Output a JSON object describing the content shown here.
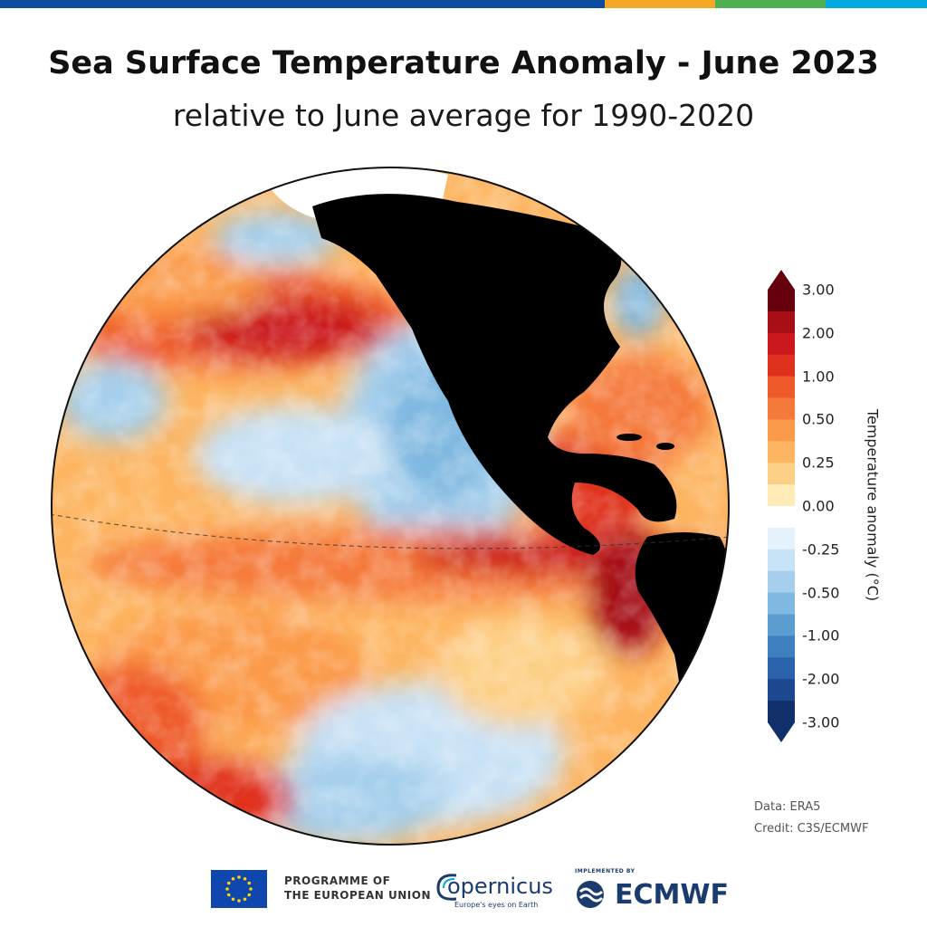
{
  "header": {
    "title": "Sea Surface Temperature Anomaly - June 2023",
    "subtitle": "relative to June average for 1990-2020",
    "stripe_colors": [
      "#0c4da2",
      "#f5a623",
      "#4caf50",
      "#00a9e0"
    ]
  },
  "map": {
    "projection": "orthographic",
    "region": "Pacific Ocean, Americas",
    "land_color": "#000000",
    "sea_ice_color": "#ffffff",
    "equator_line": "dashed"
  },
  "legend": {
    "title": "Temperature anomaly (°C)",
    "ticks": [
      "3.00",
      "2.00",
      "1.00",
      "0.50",
      "0.25",
      "0.00",
      "-0.25",
      "-0.50",
      "-1.00",
      "-2.00",
      "-3.00"
    ],
    "colors": [
      "#67000d",
      "#a50f15",
      "#cb181d",
      "#e0311f",
      "#ef5a2a",
      "#f5793a",
      "#fb9a4a",
      "#fdb561",
      "#fdd088",
      "#feebb6",
      "#ffffff",
      "#e5f1fb",
      "#c7e1f5",
      "#a5cfec",
      "#7fb8e0",
      "#5b9cd1",
      "#3e7fc0",
      "#2a62ab",
      "#1c4890",
      "#11306b"
    ],
    "extend": "both"
  },
  "credits": {
    "data": "Data: ERA5",
    "credit": "Credit: C3S/ECMWF"
  },
  "footer": {
    "eu_line1": "PROGRAMME OF",
    "eu_line2": "THE EUROPEAN UNION",
    "copernicus_name": "opernicus",
    "copernicus_tagline": "Europe's eyes on Earth",
    "ecmwf_implemented": "IMPLEMENTED BY",
    "ecmwf_name": "ECMWF"
  }
}
